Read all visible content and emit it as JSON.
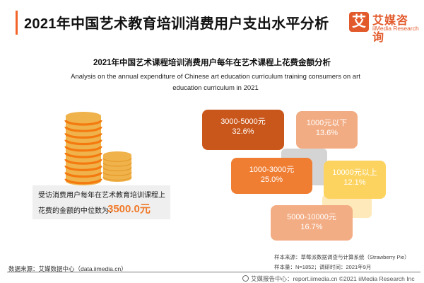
{
  "header": {
    "title": "2021年中国艺术教育培训消费用户支出水平分析",
    "logo_mark": "艾",
    "logo_cn": "艾媒咨询",
    "logo_en": "iiMedia Research"
  },
  "chart_data": {
    "type": "table",
    "title": "2021年中国艺术课程培训消费用户每年在艺术课程上花费金额分析",
    "subtitle": "Analysis on the annual expenditure of Chinese art education curriculum training consumers on art education curriculum in 2021",
    "unit": "%",
    "categories": [
      "3000-5000元",
      "1000元以下",
      "1000-3000元",
      "10000元以上",
      "5000-10000元"
    ],
    "values": [
      32.6,
      13.6,
      25.0,
      12.1,
      16.7
    ],
    "value_labels": [
      "32.6%",
      "13.6%",
      "25.0%",
      "12.1%",
      "16.7%"
    ],
    "colors": [
      "#c9561a",
      "#f2ac83",
      "#ef7e33",
      "#fdd35f",
      "#f3ad84"
    ],
    "median_label_line1": "受访消费用户每年在艺术教育培训课程上",
    "median_label_line2": "花费的金额的中位数为：",
    "median_value": "3500.0元"
  },
  "sources": {
    "sample_source": "样本来源：草莓派数据调查与计算系统（Strawberry Pie）",
    "sample_size": "样本量：N=1852；调研时间：2021年9月",
    "data_source": "数据来源：艾媒数据中心（data.iimedia.cn）",
    "footer": "艾媒报告中心：report.iimedia.cn  ©2021  iiMedia Research  Inc"
  }
}
